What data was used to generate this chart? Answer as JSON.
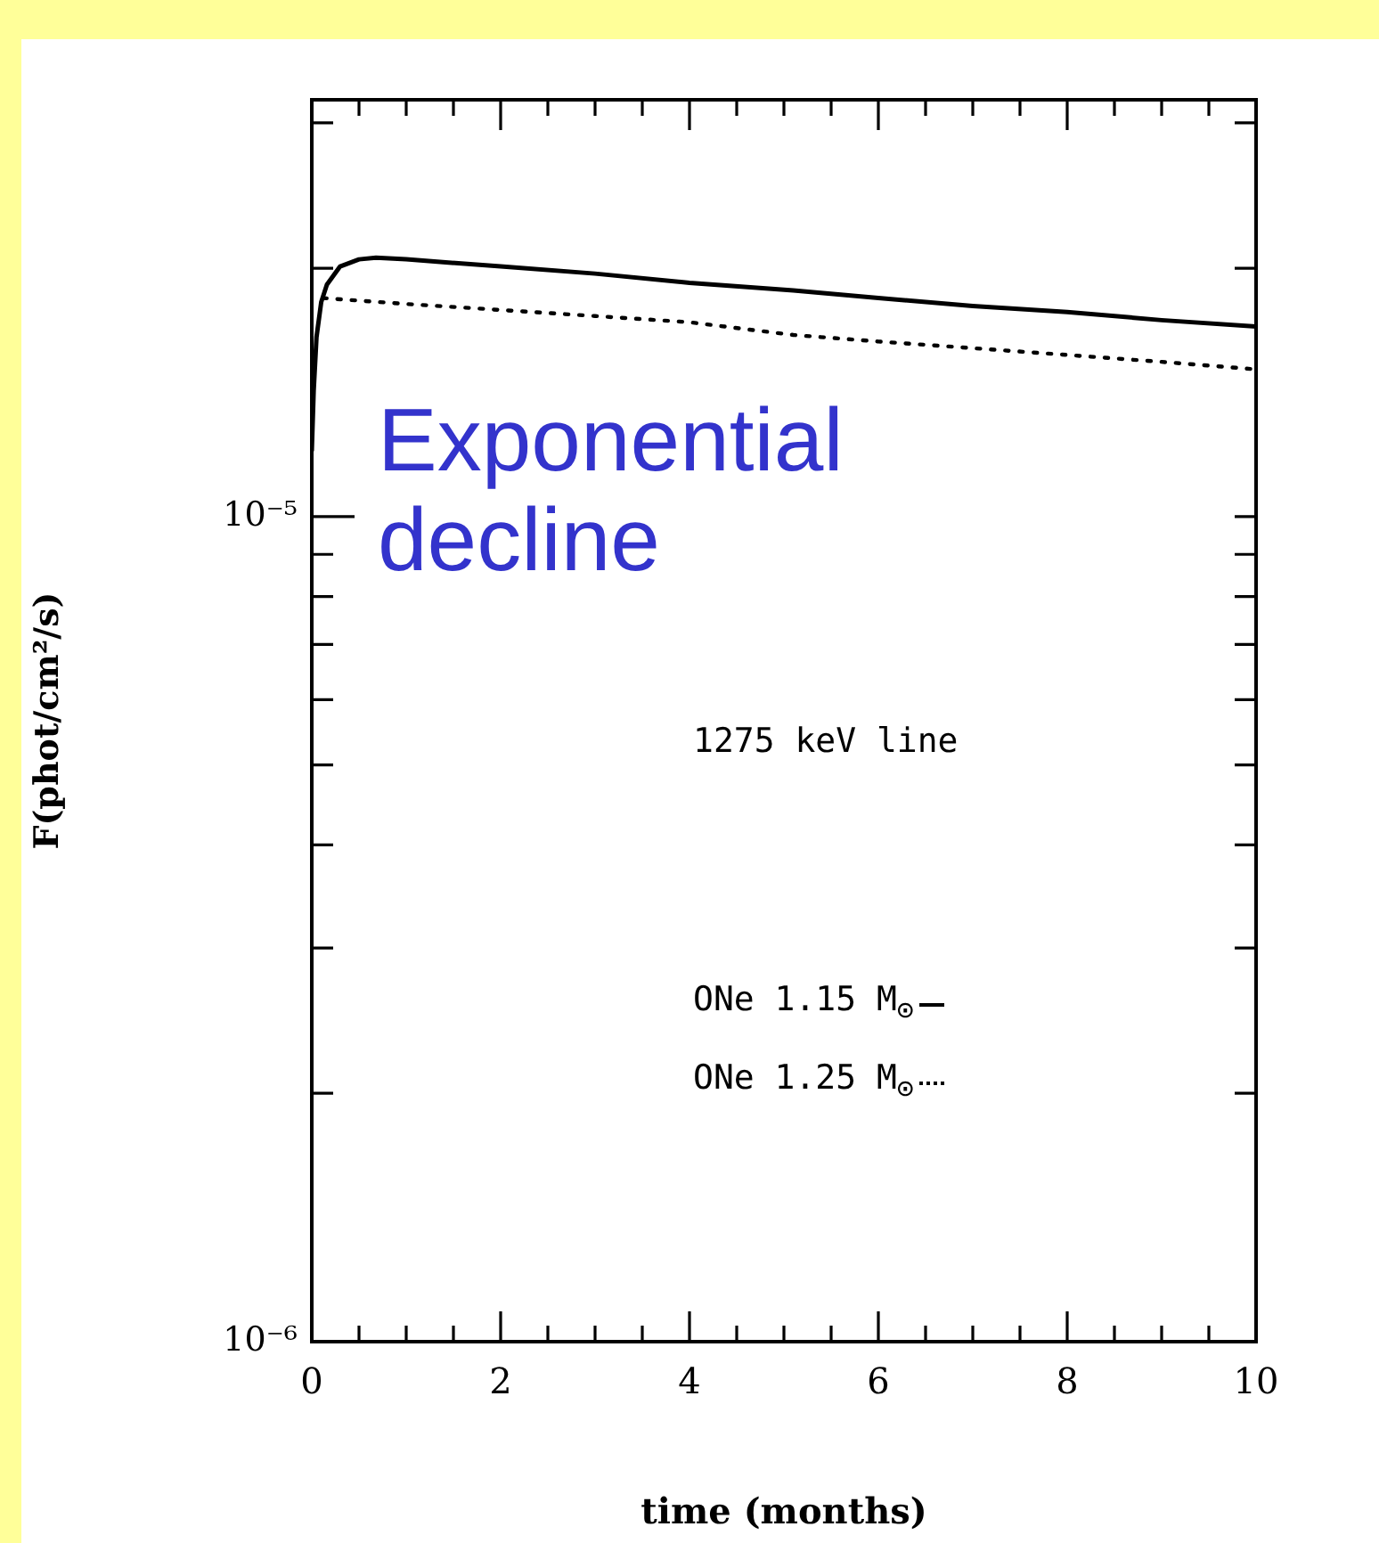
{
  "chart_data": {
    "type": "line",
    "xlabel": "time (months)",
    "ylabel": "F(phot/cm²/s)",
    "annotations": [
      "Exponential decline",
      "1275 keV line"
    ],
    "xlim": [
      0,
      10
    ],
    "xticks": [
      0,
      {
        "value": 0.5,
        "label": null
      },
      {
        "value": 1,
        "label": null
      },
      {
        "value": 1.5,
        "label": null
      },
      2,
      {
        "value": 2.5,
        "label": null
      },
      {
        "value": 3,
        "label": null
      },
      {
        "value": 3.5,
        "label": null
      },
      4,
      {
        "value": 4.5,
        "label": null
      },
      {
        "value": 5,
        "label": null
      },
      {
        "value": 5.5,
        "label": null
      },
      6,
      {
        "value": 6.5,
        "label": null
      },
      {
        "value": 7,
        "label": null
      },
      {
        "value": 7.5,
        "label": null
      },
      8,
      {
        "value": 8.5,
        "label": null
      },
      {
        "value": 9,
        "label": null
      },
      {
        "value": 9.5,
        "label": null
      },
      10
    ],
    "ylim": [
      1e-06,
      3.2e-05
    ],
    "log": "y",
    "yticks": [
      {
        "value": 1e-06,
        "label": "10⁻⁶"
      },
      {
        "value": 2e-06,
        "label": null
      },
      {
        "value": 3e-06,
        "label": null
      },
      {
        "value": 4e-06,
        "label": null
      },
      {
        "value": 5e-06,
        "label": null
      },
      {
        "value": 6e-06,
        "label": null
      },
      {
        "value": 7e-06,
        "label": null
      },
      {
        "value": 8e-06,
        "label": null
      },
      {
        "value": 9e-06,
        "label": null
      },
      {
        "value": 1e-05,
        "label": "10⁻⁵"
      },
      {
        "value": 2e-05,
        "label": null
      },
      {
        "value": 3e-05,
        "label": null
      }
    ],
    "grid": false,
    "legend": "right",
    "marker": "none",
    "series": [
      {
        "name": "ONe 1.15 M$_{⊙}$",
        "color": "#000000",
        "line_style": "solid",
        "x": [
          0,
          0.02,
          0.05,
          0.1,
          0.16,
          0.3,
          0.5,
          0.68,
          1,
          2,
          3,
          4,
          5.1,
          6,
          7,
          8,
          9,
          10
        ],
        "values": [
          1.2e-05,
          1.42e-05,
          1.65e-05,
          1.82e-05,
          1.91e-05,
          2.01e-05,
          2.05e-05,
          2.06e-05,
          2.05e-05,
          2.01e-05,
          1.97e-05,
          1.92e-05,
          1.88e-05,
          1.84e-05,
          1.8e-05,
          1.77e-05,
          1.73e-05,
          1.7e-05
        ]
      },
      {
        "name": "ONe 1.25 M$_{⊙}$",
        "color": "#000000",
        "line_style": "dotted",
        "x": [
          0.12,
          1,
          2,
          3,
          4,
          5.1,
          6,
          7,
          8,
          9,
          9.94
        ],
        "values": [
          1.84e-05,
          1.81e-05,
          1.78e-05,
          1.75e-05,
          1.72e-05,
          1.66e-05,
          1.63e-05,
          1.6e-05,
          1.57e-05,
          1.54e-05,
          1.51e-05
        ]
      }
    ]
  }
}
